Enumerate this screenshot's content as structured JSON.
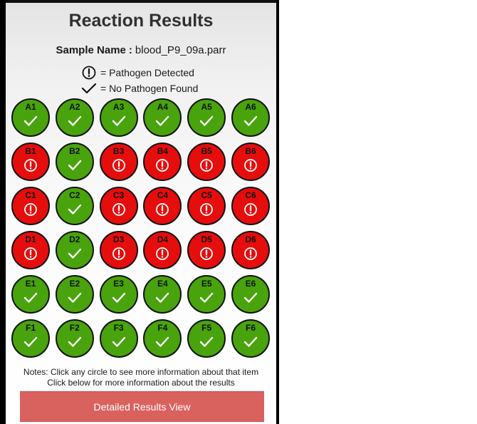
{
  "header": {
    "title": "Reaction Results",
    "sample_label": "Sample Name",
    "sample_separator": ":",
    "sample_value": "blood_P9_09a.parr"
  },
  "legend": {
    "pathogen": {
      "icon": "alert-circle-icon",
      "text": "= Pathogen Detected"
    },
    "clear": {
      "icon": "checkmark-icon",
      "text": "= No Pathogen Found"
    }
  },
  "colors": {
    "pass": "#49a30c",
    "fail": "#e60d0d",
    "button": "#d9625f",
    "title": "#303030"
  },
  "grid": {
    "rows": [
      [
        {
          "id": "A1",
          "status": "pass"
        },
        {
          "id": "A2",
          "status": "pass"
        },
        {
          "id": "A3",
          "status": "pass"
        },
        {
          "id": "A4",
          "status": "pass"
        },
        {
          "id": "A5",
          "status": "pass"
        },
        {
          "id": "A6",
          "status": "pass"
        }
      ],
      [
        {
          "id": "B1",
          "status": "fail"
        },
        {
          "id": "B2",
          "status": "pass"
        },
        {
          "id": "B3",
          "status": "fail"
        },
        {
          "id": "B4",
          "status": "fail"
        },
        {
          "id": "B5",
          "status": "fail"
        },
        {
          "id": "B6",
          "status": "fail"
        }
      ],
      [
        {
          "id": "C1",
          "status": "fail"
        },
        {
          "id": "C2",
          "status": "pass"
        },
        {
          "id": "C3",
          "status": "fail"
        },
        {
          "id": "C4",
          "status": "fail"
        },
        {
          "id": "C5",
          "status": "fail"
        },
        {
          "id": "C6",
          "status": "fail"
        }
      ],
      [
        {
          "id": "D1",
          "status": "fail"
        },
        {
          "id": "D2",
          "status": "pass"
        },
        {
          "id": "D3",
          "status": "fail"
        },
        {
          "id": "D4",
          "status": "fail"
        },
        {
          "id": "D5",
          "status": "fail"
        },
        {
          "id": "D6",
          "status": "fail"
        }
      ],
      [
        {
          "id": "E1",
          "status": "pass"
        },
        {
          "id": "E2",
          "status": "pass"
        },
        {
          "id": "E3",
          "status": "pass"
        },
        {
          "id": "E4",
          "status": "pass"
        },
        {
          "id": "E5",
          "status": "pass"
        },
        {
          "id": "E6",
          "status": "pass"
        }
      ],
      [
        {
          "id": "F1",
          "status": "pass"
        },
        {
          "id": "F2",
          "status": "pass"
        },
        {
          "id": "F3",
          "status": "pass"
        },
        {
          "id": "F4",
          "status": "pass"
        },
        {
          "id": "F5",
          "status": "pass"
        },
        {
          "id": "F6",
          "status": "pass"
        }
      ]
    ]
  },
  "notes": {
    "line1": "Notes: Click any circle to see more information about that item",
    "line2": "Click below for more information about the results"
  },
  "actions": {
    "detail_button": "Detailed Results View"
  }
}
